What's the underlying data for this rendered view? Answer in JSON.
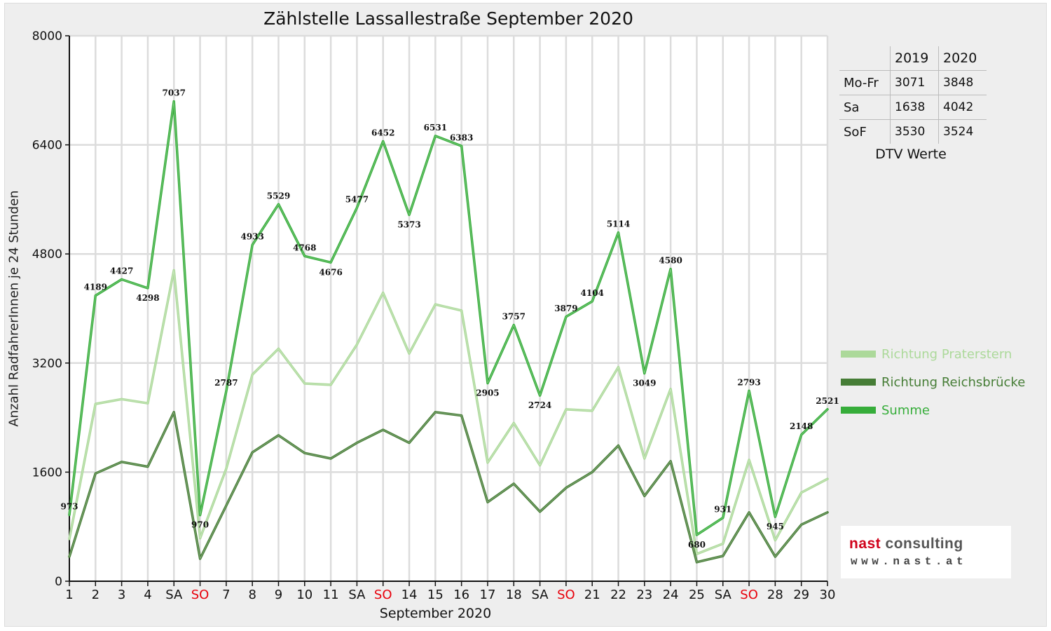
{
  "title": "Zählstelle Lassallestraße September 2020",
  "colors": {
    "praterstern": "#acd99a",
    "reichsbruecke": "#467d36",
    "summe": "#36ad3a",
    "weekend_red": "#e8000b"
  },
  "chart_data": {
    "type": "line",
    "title": "Zählstelle Lassallestraße September 2020",
    "xlabel": "September 2020",
    "ylabel": "Anzahl RadfahrerInnen je 24 Stunden",
    "ylim": [
      0,
      8000
    ],
    "yticks": [
      0,
      1600,
      3200,
      4800,
      6400,
      8000
    ],
    "grid": true,
    "legend_position": "right",
    "categories": [
      "1",
      "2",
      "3",
      "4",
      "SA",
      "SO",
      "7",
      "8",
      "9",
      "10",
      "11",
      "SA",
      "SO",
      "14",
      "15",
      "16",
      "17",
      "18",
      "SA",
      "SO",
      "21",
      "22",
      "23",
      "24",
      "25",
      "SA",
      "SO",
      "28",
      "29",
      "30"
    ],
    "category_colors": [
      "#111",
      "#111",
      "#111",
      "#111",
      "#111",
      "#e8000b",
      "#111",
      "#111",
      "#111",
      "#111",
      "#111",
      "#111",
      "#e8000b",
      "#111",
      "#111",
      "#111",
      "#111",
      "#111",
      "#111",
      "#e8000b",
      "#111",
      "#111",
      "#111",
      "#111",
      "#111",
      "#111",
      "#e8000b",
      "#111",
      "#111",
      "#111"
    ],
    "series": [
      {
        "name": "Richtung Praterstern",
        "color": "#acd99a",
        "values": [
          620,
          2600,
          2670,
          2610,
          4560,
          630,
          1650,
          3030,
          3410,
          2900,
          2880,
          3470,
          4230,
          3340,
          4060,
          3970,
          1740,
          2320,
          1700,
          2520,
          2500,
          3140,
          1800,
          2820,
          400,
          550,
          1780,
          600,
          1300,
          1500
        ]
      },
      {
        "name": "Richtung Reichsbrücke",
        "color": "#467d36",
        "values": [
          360,
          1580,
          1750,
          1680,
          2480,
          330,
          1110,
          1890,
          2140,
          1880,
          1800,
          2030,
          2220,
          2030,
          2480,
          2430,
          1160,
          1430,
          1020,
          1370,
          1600,
          1990,
          1250,
          1760,
          280,
          370,
          1010,
          360,
          830,
          1010
        ]
      },
      {
        "name": "Summe",
        "color": "#36ad3a",
        "values": [
          973,
          4189,
          4427,
          4298,
          7037,
          970,
          2787,
          4933,
          5529,
          4768,
          4676,
          5477,
          6452,
          5373,
          6531,
          6383,
          2905,
          3757,
          2724,
          3879,
          4104,
          5114,
          3049,
          4580,
          680,
          931,
          2793,
          945,
          2148,
          2521
        ],
        "labels": [
          "973",
          "4189",
          "4427",
          "4298",
          "7037",
          "970",
          "2787",
          "4933",
          "5529",
          "4768",
          "4676",
          "5477",
          "6452",
          "5373",
          "6531",
          "6383",
          "2905",
          "3757",
          "2724",
          "3879",
          "4104",
          "5114",
          "3049",
          "4580",
          "680",
          "931",
          "2793",
          "945",
          "2148",
          "2521"
        ]
      }
    ]
  },
  "dtv_table": {
    "headers": [
      "",
      "2019",
      "2020"
    ],
    "rows": [
      {
        "label": "Mo-Fr",
        "v2019": "3071",
        "v2020": "3848"
      },
      {
        "label": "Sa",
        "v2019": "1638",
        "v2020": "4042"
      },
      {
        "label": "SoF",
        "v2019": "3530",
        "v2020": "3524"
      }
    ],
    "caption": "DTV Werte"
  },
  "legend": [
    {
      "label": "Richtung Praterstern",
      "color": "#acd99a"
    },
    {
      "label": "Richtung Reichsbrücke",
      "color": "#467d36"
    },
    {
      "label": "Summe",
      "color": "#36ad3a"
    }
  ],
  "logo": {
    "name_prefix": "nast",
    "name_suffix": " consulting",
    "url": "www.nast.at"
  }
}
